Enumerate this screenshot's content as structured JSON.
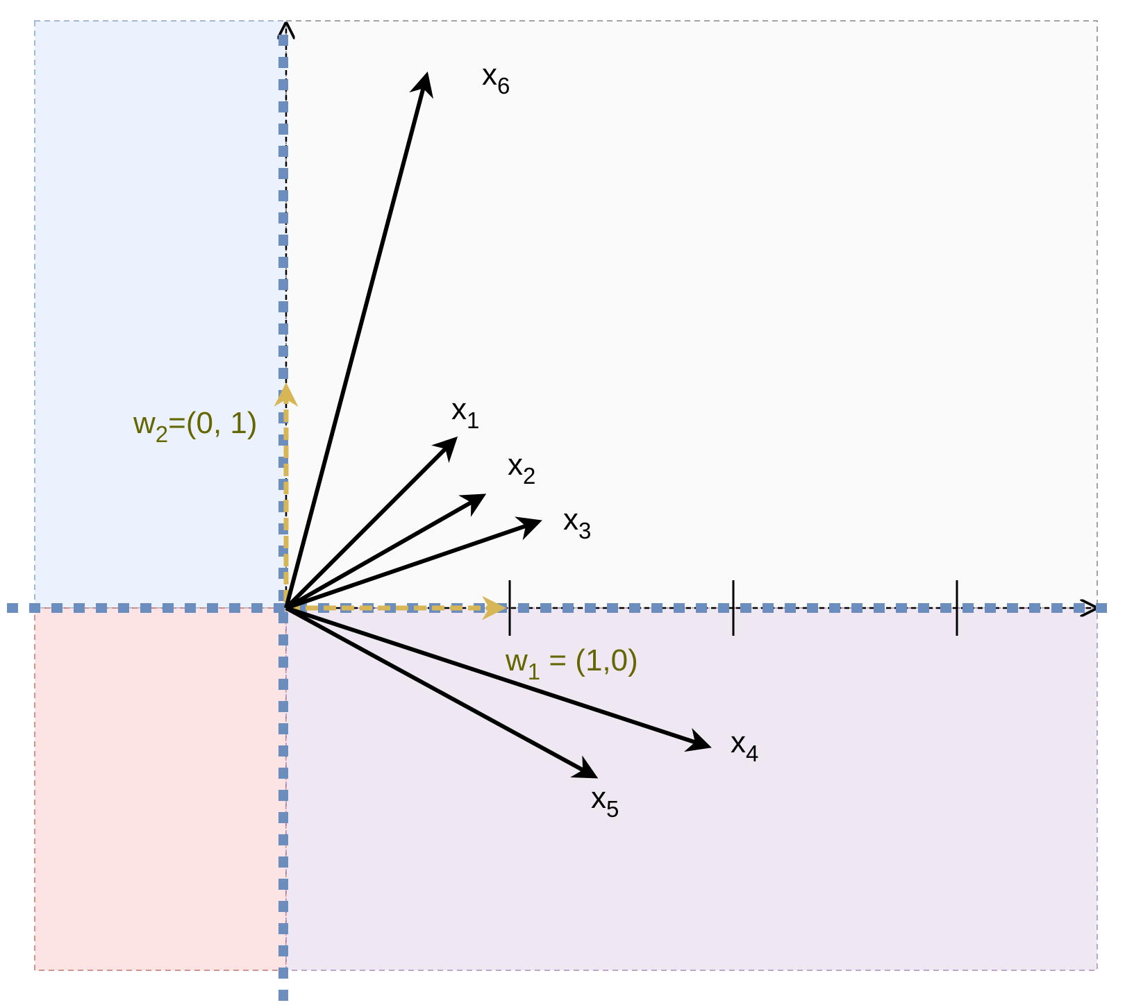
{
  "vectors": [
    {
      "id": "x1",
      "base": "x",
      "sub": "1"
    },
    {
      "id": "x2",
      "base": "x",
      "sub": "2"
    },
    {
      "id": "x3",
      "base": "x",
      "sub": "3"
    },
    {
      "id": "x4",
      "base": "x",
      "sub": "4"
    },
    {
      "id": "x5",
      "base": "x",
      "sub": "5"
    },
    {
      "id": "x6",
      "base": "x",
      "sub": "6"
    }
  ],
  "weights": {
    "w1": {
      "base": "w",
      "sub": "1",
      "value": " = (1,0)",
      "color": "#d6b656",
      "text_color": "#666600"
    },
    "w2": {
      "base": "w",
      "sub": "2",
      "value": "=(0, 1)",
      "color": "#d6b656",
      "text_color": "#666600"
    }
  },
  "regions": {
    "top_left": {
      "fill": "#dae8fc",
      "stroke": "#6c8ebf"
    },
    "top_right": {
      "fill": "#f5f5f5",
      "stroke": "#666666"
    },
    "bottom_left": {
      "fill": "#f8cecc",
      "stroke": "#b85450"
    },
    "bottom_right": {
      "fill": "#e1d5e7",
      "stroke": "#9673a6"
    }
  },
  "boundary_color": "#6c8ebf",
  "x_axis_ticks": 3
}
